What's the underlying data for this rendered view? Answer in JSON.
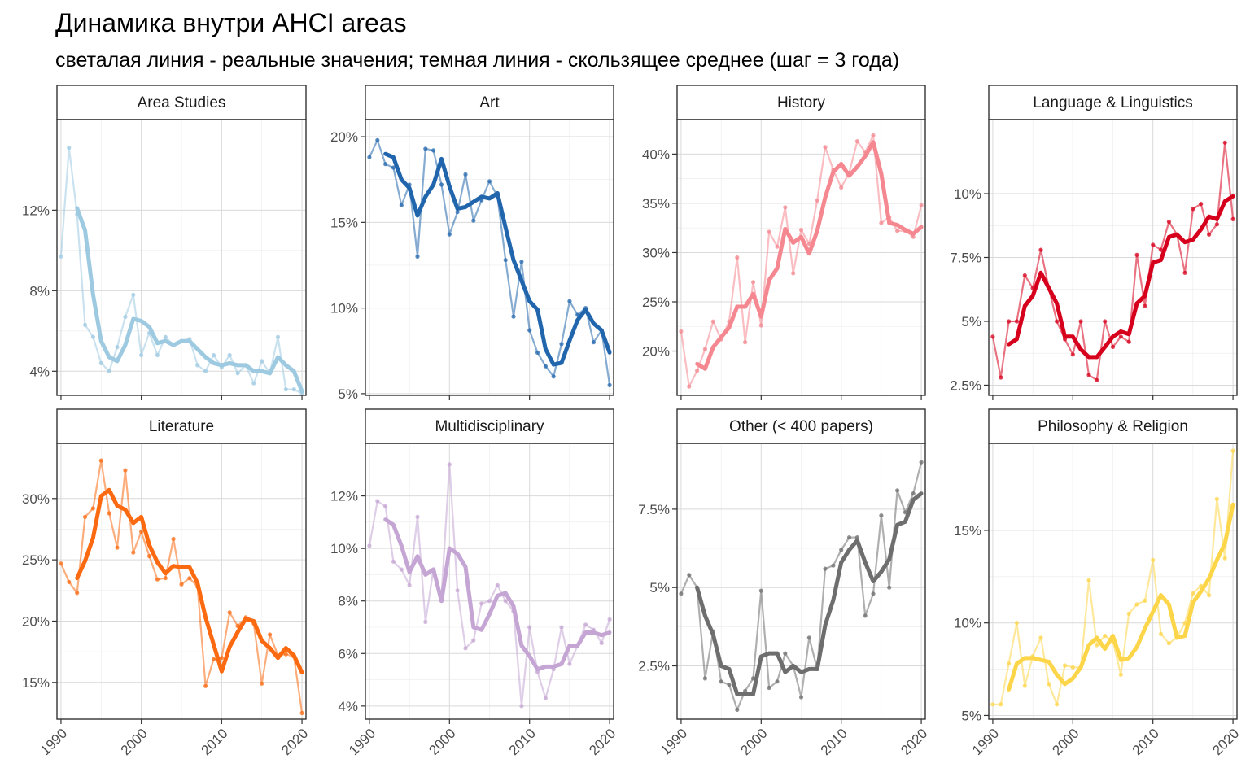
{
  "title": "Динамика внутри AHCI areas",
  "subtitle": "светалая линия - реальные значения; темная линия - скользящее среднее (шаг = 3 года)",
  "chart_data": {
    "type": "line",
    "layout": "facet grid 2 rows x 4 columns, free y scales",
    "grid": true,
    "x": [
      1990,
      1991,
      1992,
      1993,
      1994,
      1995,
      1996,
      1997,
      1998,
      1999,
      2000,
      2001,
      2002,
      2003,
      2004,
      2005,
      2006,
      2007,
      2008,
      2009,
      2010,
      2011,
      2012,
      2013,
      2014,
      2015,
      2016,
      2017,
      2018,
      2019,
      2020
    ],
    "xticks": [
      1990,
      2000,
      2010,
      2020
    ],
    "xlim": [
      1989.5,
      2020.5
    ],
    "facets": [
      {
        "name": "Area Studies",
        "color": "#9ecae1",
        "ylim": [
          2.8,
          16.5
        ],
        "yticks": [
          4,
          8,
          12
        ],
        "yticklabels": [
          "4%",
          "8%",
          "12%"
        ],
        "actual": [
          9.7,
          15.1,
          11.8,
          6.3,
          5.7,
          4.4,
          4.0,
          5.2,
          6.7,
          7.8,
          4.8,
          5.9,
          4.8,
          5.7,
          5.3,
          5.5,
          5.6,
          4.3,
          4.0,
          4.8,
          4.2,
          4.8,
          3.9,
          4.3,
          3.4,
          4.5,
          3.9,
          5.7,
          3.1,
          3.1,
          2.9
        ],
        "moving_average": [
          null,
          null,
          12.1,
          11.0,
          7.8,
          5.5,
          4.7,
          4.5,
          5.3,
          6.6,
          6.5,
          6.2,
          5.4,
          5.5,
          5.3,
          5.5,
          5.5,
          5.1,
          4.7,
          4.4,
          4.3,
          4.4,
          4.3,
          4.3,
          4.0,
          4.0,
          3.9,
          4.7,
          4.3,
          4.0,
          3.0
        ]
      },
      {
        "name": "Art",
        "color": "#2166ac",
        "ylim": [
          4.9,
          21.0
        ],
        "yticks": [
          5,
          10,
          15,
          20
        ],
        "yticklabels": [
          "5%",
          "10%",
          "15%",
          "20%"
        ],
        "actual": [
          18.8,
          19.8,
          18.4,
          18.2,
          16.0,
          17.2,
          13.0,
          19.3,
          19.2,
          17.2,
          14.3,
          15.6,
          17.8,
          15.1,
          16.3,
          17.4,
          16.5,
          12.8,
          9.5,
          12.7,
          8.7,
          7.4,
          6.6,
          6.0,
          7.9,
          10.4,
          9.6,
          10.0,
          8.0,
          8.7,
          5.5
        ],
        "moving_average": [
          null,
          null,
          19.0,
          18.8,
          17.5,
          17.0,
          15.4,
          16.5,
          17.2,
          18.7,
          17.1,
          15.8,
          15.9,
          16.2,
          16.5,
          16.4,
          16.7,
          14.7,
          12.8,
          11.6,
          10.4,
          9.9,
          7.6,
          6.7,
          6.8,
          8.1,
          9.3,
          9.9,
          9.1,
          8.7,
          7.4
        ]
      },
      {
        "name": "History",
        "color": "#f4878f",
        "ylim": [
          15.5,
          43.5
        ],
        "yticks": [
          20,
          25,
          30,
          35,
          40
        ],
        "yticklabels": [
          "20%",
          "25%",
          "30%",
          "35%",
          "40%"
        ],
        "actual": [
          22.0,
          16.4,
          18.0,
          20.2,
          23.0,
          21.2,
          23.0,
          29.5,
          20.9,
          27.0,
          22.6,
          32.1,
          30.6,
          34.6,
          27.9,
          32.3,
          30.9,
          35.3,
          40.7,
          38.4,
          36.6,
          38.1,
          41.3,
          40.2,
          41.9,
          33.0,
          33.6,
          32.2,
          32.2,
          31.6,
          34.8
        ],
        "moving_average": [
          null,
          null,
          18.7,
          18.2,
          20.4,
          21.4,
          22.4,
          24.5,
          24.5,
          25.8,
          23.5,
          27.2,
          28.4,
          32.4,
          31.0,
          31.6,
          29.9,
          32.2,
          35.6,
          38.2,
          39.0,
          37.8,
          38.7,
          39.8,
          41.2,
          38.0,
          33.0,
          32.8,
          32.3,
          31.9,
          32.6
        ]
      },
      {
        "name": "Language & Linguistics",
        "color": "#d7001c",
        "ylim": [
          2.1,
          12.9
        ],
        "yticks": [
          2.5,
          5,
          7.5,
          10
        ],
        "yticklabels": [
          "2.5%",
          "5%",
          "7.5%",
          "10%"
        ],
        "actual": [
          4.4,
          2.8,
          5.0,
          5.0,
          6.8,
          6.3,
          7.8,
          6.3,
          5.0,
          4.3,
          3.7,
          5.0,
          2.9,
          2.7,
          5.0,
          4.0,
          4.4,
          4.2,
          7.6,
          5.6,
          8.0,
          7.8,
          8.9,
          8.4,
          6.9,
          9.4,
          9.6,
          8.4,
          8.8,
          12.0,
          9.0
        ],
        "moving_average": [
          null,
          null,
          4.1,
          4.3,
          5.6,
          6.0,
          6.9,
          6.3,
          5.7,
          4.4,
          4.4,
          3.9,
          3.6,
          3.6,
          4.0,
          4.4,
          4.6,
          4.5,
          5.7,
          6.0,
          7.3,
          7.4,
          8.3,
          8.4,
          8.1,
          8.2,
          8.6,
          9.1,
          9.0,
          9.7,
          9.9
        ]
      },
      {
        "name": "Literature",
        "color": "#fb6a10",
        "ylim": [
          12.0,
          34.5
        ],
        "yticks": [
          15,
          20,
          25,
          30
        ],
        "yticklabels": [
          "15%",
          "20%",
          "25%",
          "30%"
        ],
        "actual": [
          24.7,
          23.2,
          22.3,
          28.5,
          29.2,
          33.1,
          28.8,
          26.0,
          32.3,
          25.6,
          27.3,
          25.3,
          23.4,
          23.5,
          26.7,
          23.0,
          23.5,
          22.8,
          14.7,
          16.9,
          17.0,
          20.7,
          19.6,
          20.3,
          19.8,
          14.9,
          18.9,
          17.2,
          17.3,
          17.1,
          12.5
        ],
        "moving_average": [
          null,
          null,
          23.5,
          24.9,
          26.8,
          30.2,
          30.7,
          29.4,
          29.1,
          28.0,
          28.5,
          26.2,
          24.8,
          23.9,
          24.5,
          24.4,
          24.4,
          23.1,
          20.3,
          18.1,
          15.9,
          17.9,
          19.1,
          20.2,
          20.0,
          18.4,
          17.8,
          17.0,
          17.8,
          17.2,
          15.8
        ]
      },
      {
        "name": "Multidisciplinary",
        "color": "#c5a5d3",
        "ylim": [
          3.5,
          14.0
        ],
        "yticks": [
          4,
          6,
          8,
          10,
          12
        ],
        "yticklabels": [
          "4%",
          "6%",
          "8%",
          "10%",
          "12%"
        ],
        "actual": [
          10.1,
          11.8,
          11.6,
          9.5,
          9.2,
          8.6,
          11.2,
          7.2,
          9.2,
          8.2,
          13.2,
          8.4,
          6.2,
          6.5,
          7.9,
          8.0,
          8.6,
          8.0,
          7.6,
          4.0,
          7.0,
          5.3,
          4.3,
          5.4,
          7.0,
          5.6,
          6.3,
          7.1,
          6.9,
          6.4,
          7.3
        ],
        "moving_average": [
          null,
          null,
          11.1,
          10.9,
          10.1,
          9.1,
          9.7,
          9.0,
          9.2,
          8.0,
          10.0,
          9.8,
          9.3,
          7.0,
          6.9,
          7.5,
          8.2,
          8.3,
          7.8,
          6.3,
          5.9,
          5.4,
          5.5,
          5.5,
          5.6,
          6.3,
          6.3,
          6.8,
          6.8,
          6.7,
          6.8
        ]
      },
      {
        "name": "Other (< 400 papers)",
        "color": "#6e6e6e",
        "ylim": [
          0.8,
          9.6
        ],
        "yticks": [
          2.5,
          5,
          7.5
        ],
        "yticklabels": [
          "2.5%",
          "5%",
          "7.5%"
        ],
        "actual": [
          4.8,
          5.4,
          5.0,
          2.1,
          3.6,
          2.0,
          1.9,
          1.1,
          1.7,
          2.1,
          4.9,
          1.8,
          2.0,
          2.9,
          2.5,
          1.5,
          3.4,
          2.4,
          5.6,
          5.7,
          6.2,
          6.6,
          6.6,
          4.1,
          4.8,
          7.3,
          5.0,
          8.1,
          7.4,
          8.0,
          9.0
        ],
        "moving_average": [
          null,
          null,
          5.0,
          4.1,
          3.5,
          2.5,
          2.4,
          1.6,
          1.6,
          1.6,
          2.8,
          2.9,
          2.9,
          2.3,
          2.5,
          2.3,
          2.4,
          2.4,
          3.8,
          4.6,
          5.8,
          6.2,
          6.5,
          5.8,
          5.2,
          5.5,
          5.9,
          7.0,
          7.1,
          7.8,
          8.0
        ]
      },
      {
        "name": "Philosophy & Religion",
        "color": "#fdd549",
        "ylim": [
          4.8,
          19.7
        ],
        "yticks": [
          5,
          10,
          15
        ],
        "yticklabels": [
          "5%",
          "10%",
          "15%"
        ],
        "actual": [
          5.6,
          5.6,
          7.8,
          10.0,
          6.6,
          8.2,
          9.2,
          6.7,
          5.6,
          7.7,
          7.6,
          7.6,
          12.3,
          8.8,
          9.3,
          9.0,
          7.2,
          10.5,
          11.0,
          11.2,
          13.4,
          9.4,
          8.9,
          9.2,
          10.0,
          11.6,
          12.0,
          11.5,
          16.7,
          13.5,
          19.3
        ],
        "moving_average": [
          null,
          null,
          6.4,
          7.8,
          8.1,
          8.1,
          8.0,
          7.9,
          7.2,
          6.7,
          7.0,
          7.6,
          8.8,
          9.2,
          8.6,
          9.3,
          8.0,
          8.1,
          8.7,
          9.7,
          10.6,
          11.5,
          11.0,
          9.2,
          9.3,
          11.1,
          11.7,
          12.4,
          13.4,
          14.3,
          16.4
        ]
      }
    ]
  }
}
